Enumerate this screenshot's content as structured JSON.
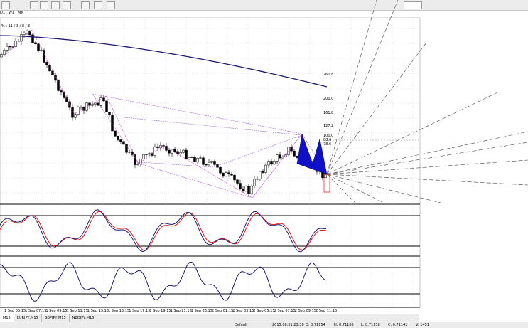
{
  "toolbar": {
    "periods": [
      "D1",
      "W1",
      "MN"
    ]
  },
  "chart": {
    "header": "% : 11 / 3 / 8 / 3",
    "fib_labels": [
      "261.8",
      "200.0",
      "161.8",
      "127.2",
      "100.0",
      "88.6",
      "78.6"
    ],
    "time_labels": [
      "1 Sep 05:15",
      "1 Sep 07:15",
      "1 Sep 09:15",
      "1 Sep 11:15",
      "1 Sep 13:15",
      "1 Sep 15:15",
      "1 Sep 17:15",
      "1 Sep 19:15",
      "1 Sep 21:15",
      "1 Sep 23:15",
      "2 Sep 01:15",
      "2 Sep 03:15",
      "2 Sep 05:15",
      "2 Sep 07:15",
      "2 Sep 09:15",
      "2 Sep 11:15"
    ]
  },
  "tabs": [
    "M15",
    "EURJPY,M15",
    "GBPJPY,M15",
    "NZDJPY,M15"
  ],
  "status": [
    "Default",
    "2015.08.31 23:30",
    "O: 0.71154",
    "H: 0.71185",
    "L: 0.71138",
    "C: 0.71141",
    "V: 1451"
  ]
}
